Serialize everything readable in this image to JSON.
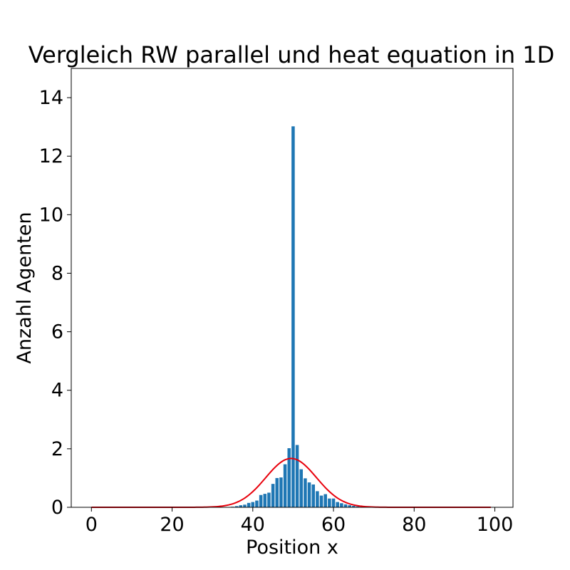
{
  "chart_data": {
    "type": "bar",
    "title": "Vergleich RW parallel und heat equation in 1D",
    "xlabel": "Position x",
    "ylabel": "Anzahl Agenten",
    "xlim": [
      -5,
      104.5
    ],
    "ylim": [
      0,
      15
    ],
    "xticks": [
      0,
      20,
      40,
      60,
      80,
      100
    ],
    "yticks": [
      0,
      2,
      4,
      6,
      8,
      10,
      12,
      14
    ],
    "grid": false,
    "colors": {
      "bars": "#1f77b4",
      "curve": "#e8000b"
    },
    "series": [
      {
        "type": "bar",
        "x": [
          35,
          36,
          37,
          38,
          39,
          40,
          41,
          42,
          43,
          44,
          45,
          46,
          47,
          48,
          49,
          50,
          51,
          52,
          53,
          54,
          55,
          56,
          57,
          58,
          59,
          60,
          61,
          62,
          63,
          64,
          65,
          66,
          67
        ],
        "values": [
          0.02,
          0.04,
          0.07,
          0.09,
          0.15,
          0.18,
          0.23,
          0.42,
          0.46,
          0.5,
          0.8,
          1.0,
          1.02,
          1.47,
          2.02,
          13.02,
          2.13,
          1.3,
          0.99,
          0.85,
          0.78,
          0.55,
          0.4,
          0.45,
          0.3,
          0.3,
          0.18,
          0.14,
          0.1,
          0.07,
          0.05,
          0.03,
          0.02
        ]
      },
      {
        "type": "line",
        "model": "gaussian",
        "x_range": [
          0,
          99
        ],
        "peak": 1.67,
        "mean": 49.5,
        "std": 6.3
      }
    ]
  }
}
